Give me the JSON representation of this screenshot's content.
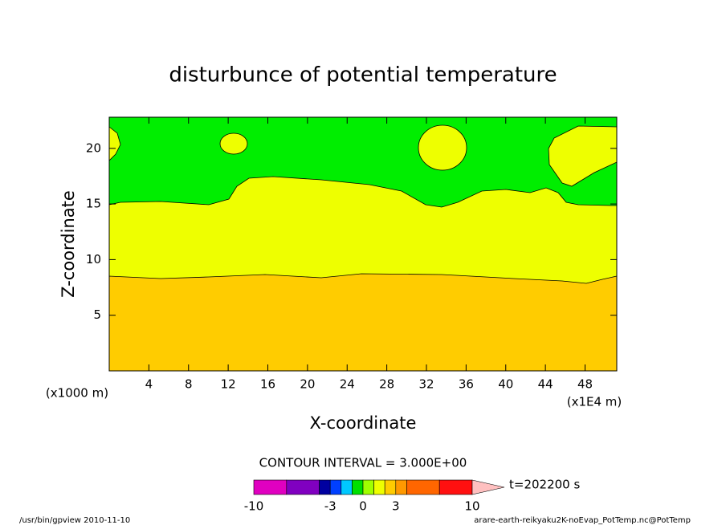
{
  "chart_data": {
    "type": "contour",
    "title": "disturbunce of potential temperature",
    "xlabel": "X-coordinate",
    "ylabel": "Z-coordinate",
    "x_unit_left": "(x1000 m)",
    "x_unit_right": "(x1E4 m)",
    "xlim": [
      0,
      51.2
    ],
    "xticks": [
      4,
      8,
      12,
      16,
      20,
      24,
      28,
      32,
      36,
      40,
      44,
      48
    ],
    "ylim": [
      0,
      22.8
    ],
    "yticks": [
      5,
      10,
      15,
      20
    ],
    "contour_interval": "CONTOUR INTERVAL = 3.000E+00",
    "time": "t=202200 s",
    "colorbar": {
      "levels": [
        -10,
        -7,
        -4,
        -3,
        -2,
        -1,
        0,
        1,
        2,
        3,
        4,
        7,
        10
      ],
      "colors": [
        "#e000c0",
        "#8000c0",
        "#0000a0",
        "#0040ff",
        "#00c8ff",
        "#00e000",
        "#a0ff00",
        "#eeff00",
        "#ffcc00",
        "#ff9900",
        "#ff6600",
        "#ff1010",
        "#ff8080",
        "#ffc0c0"
      ],
      "ticks": [
        -10,
        -3,
        0,
        3,
        10
      ]
    },
    "footer_left": "/usr/bin/gpview  2010-11-10",
    "footer_right": "arare-earth-reikyaku2K-noEvap_PotTemp.nc@PotTemp"
  }
}
